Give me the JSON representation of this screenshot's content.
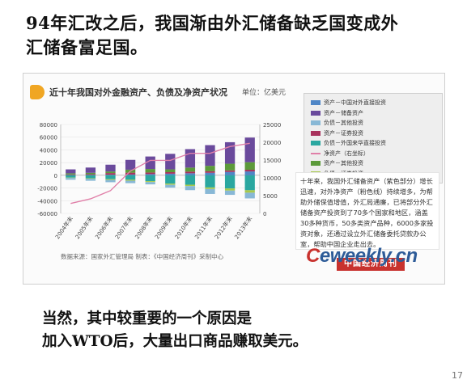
{
  "slide": {
    "heading_line1": "94年汇改之后，我国渐由外汇储备缺乏国变成外",
    "heading_line2": "汇储备富足国。",
    "bottom_line1": "当然，其中较重要的一个原因是",
    "bottom_line2": "加入WTO后，大量出口商品赚取美元。",
    "page_number": "17"
  },
  "figure": {
    "title": "近十年我国对外金融资产、负债及净资产状况",
    "unit": "单位：亿美元",
    "source": "数据来源：国家外汇管理局    制表：《中国经济周刊》采制中心",
    "note": "十年来，我国外汇储备资产（紫色部分）增长迅速，对外净资产（粉色线）持续增多，为帮助外储保值增值，外汇局通廉，已将部分外汇储备资产投资到了70多个国家和地区，涵盖30多种货币，50多类资产品种，6000多家投资对象，还通过设立外汇储备委托贷款办公室，帮助中国企业走出去。",
    "stamp": "中国经济周刊",
    "legend": [
      {
        "label": "资产－中国对外直接投资",
        "color": "#4f86c6",
        "kind": "box"
      },
      {
        "label": "资产－储备资产",
        "color": "#6a4a9c",
        "kind": "box"
      },
      {
        "label": "负债－其他投资",
        "color": "#88b8d6",
        "kind": "box"
      },
      {
        "label": "资产－证券投资",
        "color": "#a8325c",
        "kind": "box"
      },
      {
        "label": "负债－外国来华直接投资",
        "color": "#2aa7a0",
        "kind": "box"
      },
      {
        "label": "净资产（右坐标）",
        "color": "#e07fa8",
        "kind": "line"
      },
      {
        "label": "资产－其他投资",
        "color": "#5c9a3a",
        "kind": "box"
      },
      {
        "label": "负债－证券投资",
        "color": "#a8c94a",
        "kind": "box"
      }
    ]
  },
  "watermark": {
    "mark": "C",
    "text": "eweekly.cn"
  },
  "chart_data": {
    "type": "bar",
    "categories": [
      "2004年末",
      "2005年末",
      "2006年末",
      "2007年末",
      "2008年末",
      "2009年末",
      "2010年末",
      "2011年末",
      "2012年末",
      "2013年末"
    ],
    "ylim": [
      -60000,
      80000
    ],
    "y2lim": [
      0,
      25000
    ],
    "yticks": [
      80000,
      60000,
      40000,
      20000,
      0,
      -20000,
      -40000,
      -60000
    ],
    "y2ticks": [
      25000,
      20000,
      15000,
      10000,
      5000,
      0
    ],
    "series": [
      {
        "name": "资产－中国对外直接投资",
        "color": "#4f86c6",
        "values": [
          500,
          600,
          900,
          1200,
          1900,
          2500,
          3200,
          3900,
          5300,
          6100
        ]
      },
      {
        "name": "资产－证券投资",
        "color": "#a8325c",
        "values": [
          900,
          1200,
          2600,
          2900,
          2500,
          2400,
          2600,
          2500,
          2400,
          2600
        ]
      },
      {
        "name": "资产－其他投资",
        "color": "#5c9a3a",
        "values": [
          1700,
          2100,
          2500,
          4700,
          5500,
          4400,
          6300,
          8500,
          10500,
          11900
        ]
      },
      {
        "name": "资产－储备资产",
        "color": "#6a4a9c",
        "values": [
          6200,
          8300,
          10700,
          15500,
          19700,
          24500,
          29100,
          32600,
          33900,
          38800
        ]
      },
      {
        "name": "负债－外国来华直接投资",
        "color": "#2aa7a0",
        "values": [
          -3700,
          -4700,
          -6100,
          -7000,
          -9200,
          -13100,
          -14800,
          -19100,
          -20700,
          -23500
        ]
      },
      {
        "name": "负债－证券投资",
        "color": "#a8c94a",
        "values": [
          -600,
          -800,
          -1200,
          -1500,
          -1500,
          -1900,
          -2200,
          -2500,
          -3400,
          -3900
        ]
      },
      {
        "name": "负债－其他投资",
        "color": "#88b8d6",
        "values": [
          -2700,
          -3100,
          -3600,
          -3900,
          -3600,
          -4400,
          -6400,
          -7800,
          -6700,
          -9000
        ]
      }
    ],
    "line": {
      "name": "净资产（右坐标）",
      "color": "#e07fa8",
      "axis": "right",
      "values": [
        2800,
        4100,
        6400,
        11900,
        14900,
        14900,
        16900,
        16900,
        18800,
        19700
      ]
    }
  }
}
